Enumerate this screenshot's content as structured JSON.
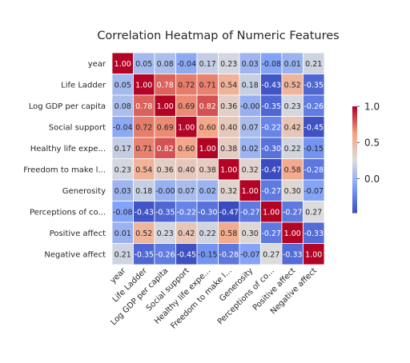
{
  "chart_data": {
    "type": "heatmap",
    "title": "Correlation Heatmap of Numeric Features",
    "row_labels": [
      "year",
      "Life Ladder",
      "Log GDP per capita",
      "Social support",
      "Healthy life expe...",
      "Freedom to make l...",
      "Generosity",
      "Perceptions of co...",
      "Positive affect",
      "Negative affect"
    ],
    "col_labels": [
      "year",
      "Life Ladder",
      "Log GDP per capita",
      "Social support",
      "Healthy life expe...",
      "Freedom to make l...",
      "Generosity",
      "Perceptions of co...",
      "Positive affect",
      "Negative affect"
    ],
    "values": [
      [
        1.0,
        0.05,
        0.08,
        -0.04,
        0.17,
        0.23,
        0.03,
        -0.08,
        0.01,
        0.21
      ],
      [
        0.05,
        1.0,
        0.78,
        0.72,
        0.71,
        0.54,
        0.18,
        -0.43,
        0.52,
        -0.35
      ],
      [
        0.08,
        0.78,
        1.0,
        0.69,
        0.82,
        0.36,
        -0.0,
        -0.35,
        0.23,
        -0.26
      ],
      [
        -0.04,
        0.72,
        0.69,
        1.0,
        0.6,
        0.4,
        0.07,
        -0.22,
        0.42,
        -0.45
      ],
      [
        0.17,
        0.71,
        0.82,
        0.6,
        1.0,
        0.38,
        0.02,
        -0.3,
        0.22,
        -0.15
      ],
      [
        0.23,
        0.54,
        0.36,
        0.4,
        0.38,
        1.0,
        0.32,
        -0.47,
        0.58,
        -0.28
      ],
      [
        0.03,
        0.18,
        -0.0,
        0.07,
        0.02,
        0.32,
        1.0,
        -0.27,
        0.3,
        -0.07
      ],
      [
        -0.08,
        -0.43,
        -0.35,
        -0.22,
        -0.3,
        -0.47,
        -0.27,
        1.0,
        -0.27,
        0.27
      ],
      [
        0.01,
        0.52,
        0.23,
        0.42,
        0.22,
        0.58,
        0.3,
        -0.27,
        1.0,
        -0.33
      ],
      [
        0.21,
        -0.35,
        -0.26,
        -0.45,
        -0.15,
        -0.28,
        -0.07,
        0.27,
        -0.33,
        1.0
      ]
    ],
    "colormap": "coolwarm",
    "colorbar": {
      "range": [
        -0.47,
        1.0
      ],
      "ticks": [
        "1.0",
        "0.5",
        "0.0"
      ],
      "tick_values": [
        1.0,
        0.5,
        0.0
      ]
    },
    "annotations": "cell values shown with two decimals",
    "grid": false
  }
}
